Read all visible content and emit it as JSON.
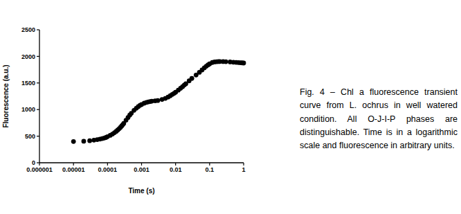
{
  "chart_data": {
    "type": "scatter",
    "x_label": "Time (s)",
    "y_label": "Fluorescence (a.u.)",
    "caption": "Fig. 4 – Chl a fluorescence transient curve from L. ochrus in well watered condition. All O-J-I-P phases are distinguishable. Time is in a logarithmic scale and fluorescence in arbitrary units.",
    "log": "x",
    "color": "#000000",
    "marker": "circle",
    "xlim": [
      1e-06,
      1
    ],
    "xticks": [
      1e-06,
      1e-05,
      0.0001,
      0.001,
      0.01,
      0.1,
      1
    ],
    "ylim": [
      0,
      2500
    ],
    "yticks": [
      0,
      500,
      1000,
      1500,
      2000,
      2500
    ],
    "x": [
      1e-05,
      2e-05,
      3e-05,
      4e-05,
      5e-05,
      6e-05,
      7e-05,
      8e-05,
      9e-05,
      0.0001,
      0.00012,
      0.00014,
      0.00016,
      0.00018,
      0.0002,
      0.00022,
      0.00024,
      0.00026,
      0.00028,
      0.0003,
      0.00035,
      0.0004,
      0.00045,
      0.0005,
      0.0006,
      0.0007,
      0.0008,
      0.0009,
      0.001,
      0.0012,
      0.0014,
      0.0016,
      0.0018,
      0.002,
      0.0025,
      0.003,
      0.004,
      0.005,
      0.006,
      0.007,
      0.008,
      0.009,
      0.01,
      0.012,
      0.014,
      0.016,
      0.018,
      0.02,
      0.025,
      0.03,
      0.04,
      0.05,
      0.06,
      0.07,
      0.08,
      0.09,
      0.1,
      0.12,
      0.14,
      0.16,
      0.18,
      0.2,
      0.25,
      0.3,
      0.4,
      0.5,
      0.6,
      0.7,
      0.8,
      0.9,
      1
    ],
    "values": [
      400,
      405,
      415,
      425,
      435,
      445,
      455,
      465,
      475,
      490,
      515,
      540,
      565,
      590,
      615,
      640,
      665,
      690,
      715,
      740,
      800,
      850,
      895,
      930,
      985,
      1025,
      1055,
      1080,
      1095,
      1120,
      1135,
      1145,
      1152,
      1158,
      1165,
      1170,
      1190,
      1210,
      1235,
      1260,
      1285,
      1305,
      1325,
      1365,
      1400,
      1430,
      1460,
      1485,
      1540,
      1585,
      1650,
      1700,
      1745,
      1785,
      1815,
      1840,
      1860,
      1885,
      1895,
      1900,
      1902,
      1903,
      1902,
      1900,
      1895,
      1890,
      1887,
      1884,
      1881,
      1878,
      1875
    ]
  }
}
